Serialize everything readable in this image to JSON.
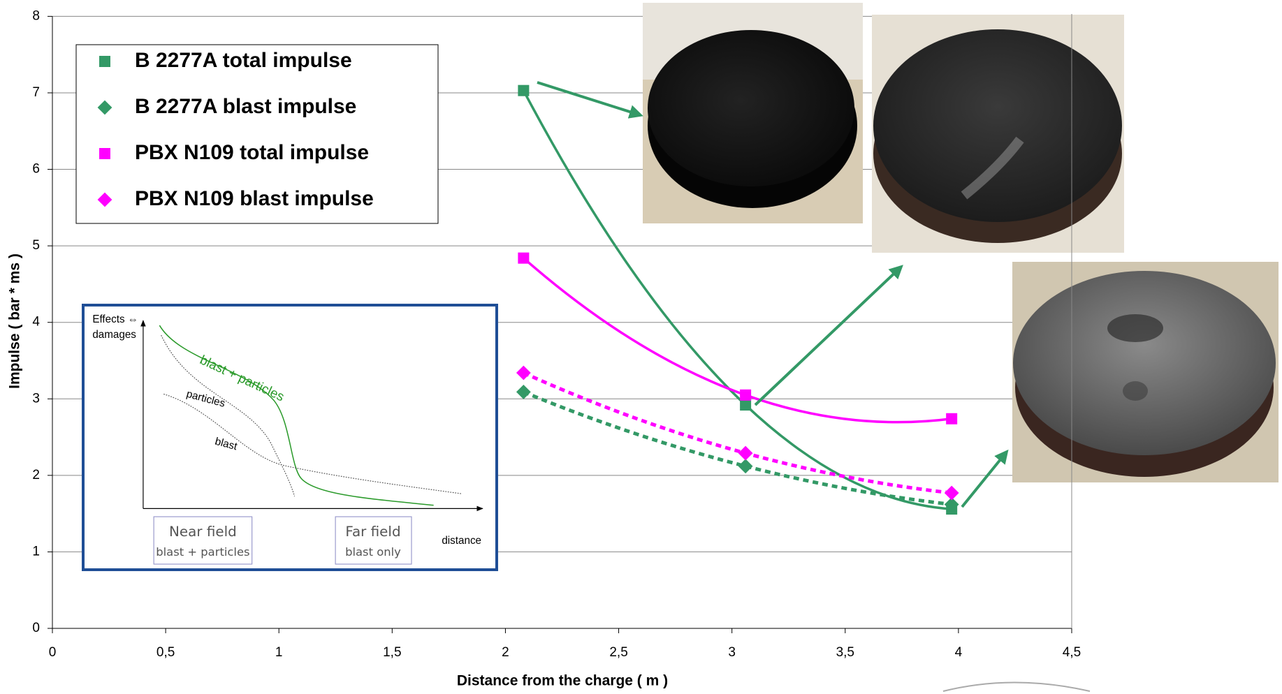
{
  "chart_data": {
    "type": "line",
    "xlabel": "Distance from the charge ( m )",
    "ylabel": "Impulse ( bar * ms )",
    "xlim": [
      0,
      4.5
    ],
    "ylim": [
      0,
      8
    ],
    "xticks": [
      0,
      {
        "value": 0.5,
        "label": "0,5"
      },
      1,
      {
        "value": 1.5,
        "label": "1,5"
      },
      2,
      {
        "value": 2.5,
        "label": "2,5"
      },
      3,
      {
        "value": 3.5,
        "label": "3,5"
      },
      4,
      {
        "value": 4.5,
        "label": "4,5"
      }
    ],
    "yticks": [
      0,
      1,
      2,
      3,
      4,
      5,
      6,
      7,
      8
    ],
    "grid": true,
    "series": [
      {
        "name": "B 2277A total impulse",
        "color": "#339966",
        "marker": "square",
        "line_style": "solid",
        "x": [
          2.08,
          3.06,
          3.97
        ],
        "values": [
          7.03,
          2.92,
          1.56
        ]
      },
      {
        "name": "B 2277A blast impulse",
        "color": "#339966",
        "marker": "diamond",
        "line_style": "dashed",
        "x": [
          2.08,
          3.06,
          3.97
        ],
        "values": [
          3.09,
          2.12,
          1.62
        ]
      },
      {
        "name": "PBX N109 total impulse",
        "color": "#ff00ff",
        "marker": "square",
        "line_style": "solid",
        "x": [
          2.08,
          3.06,
          3.97
        ],
        "values": [
          4.84,
          3.05,
          2.74
        ]
      },
      {
        "name": "PBX N109 blast impulse",
        "color": "#ff00ff",
        "marker": "diamond",
        "line_style": "dashed",
        "x": [
          2.08,
          3.06,
          3.97
        ],
        "values": [
          3.34,
          2.29,
          1.77
        ]
      }
    ]
  },
  "inset": {
    "y_label": [
      "Effects ⇔",
      "damages"
    ],
    "curve_labels": [
      "blast + particles",
      "particles",
      "blast"
    ],
    "x_label": "distance",
    "near_field": {
      "title": "Near field",
      "subtitle": "blast + particles"
    },
    "far_field": {
      "title": "Far field",
      "subtitle": "blast only"
    }
  }
}
